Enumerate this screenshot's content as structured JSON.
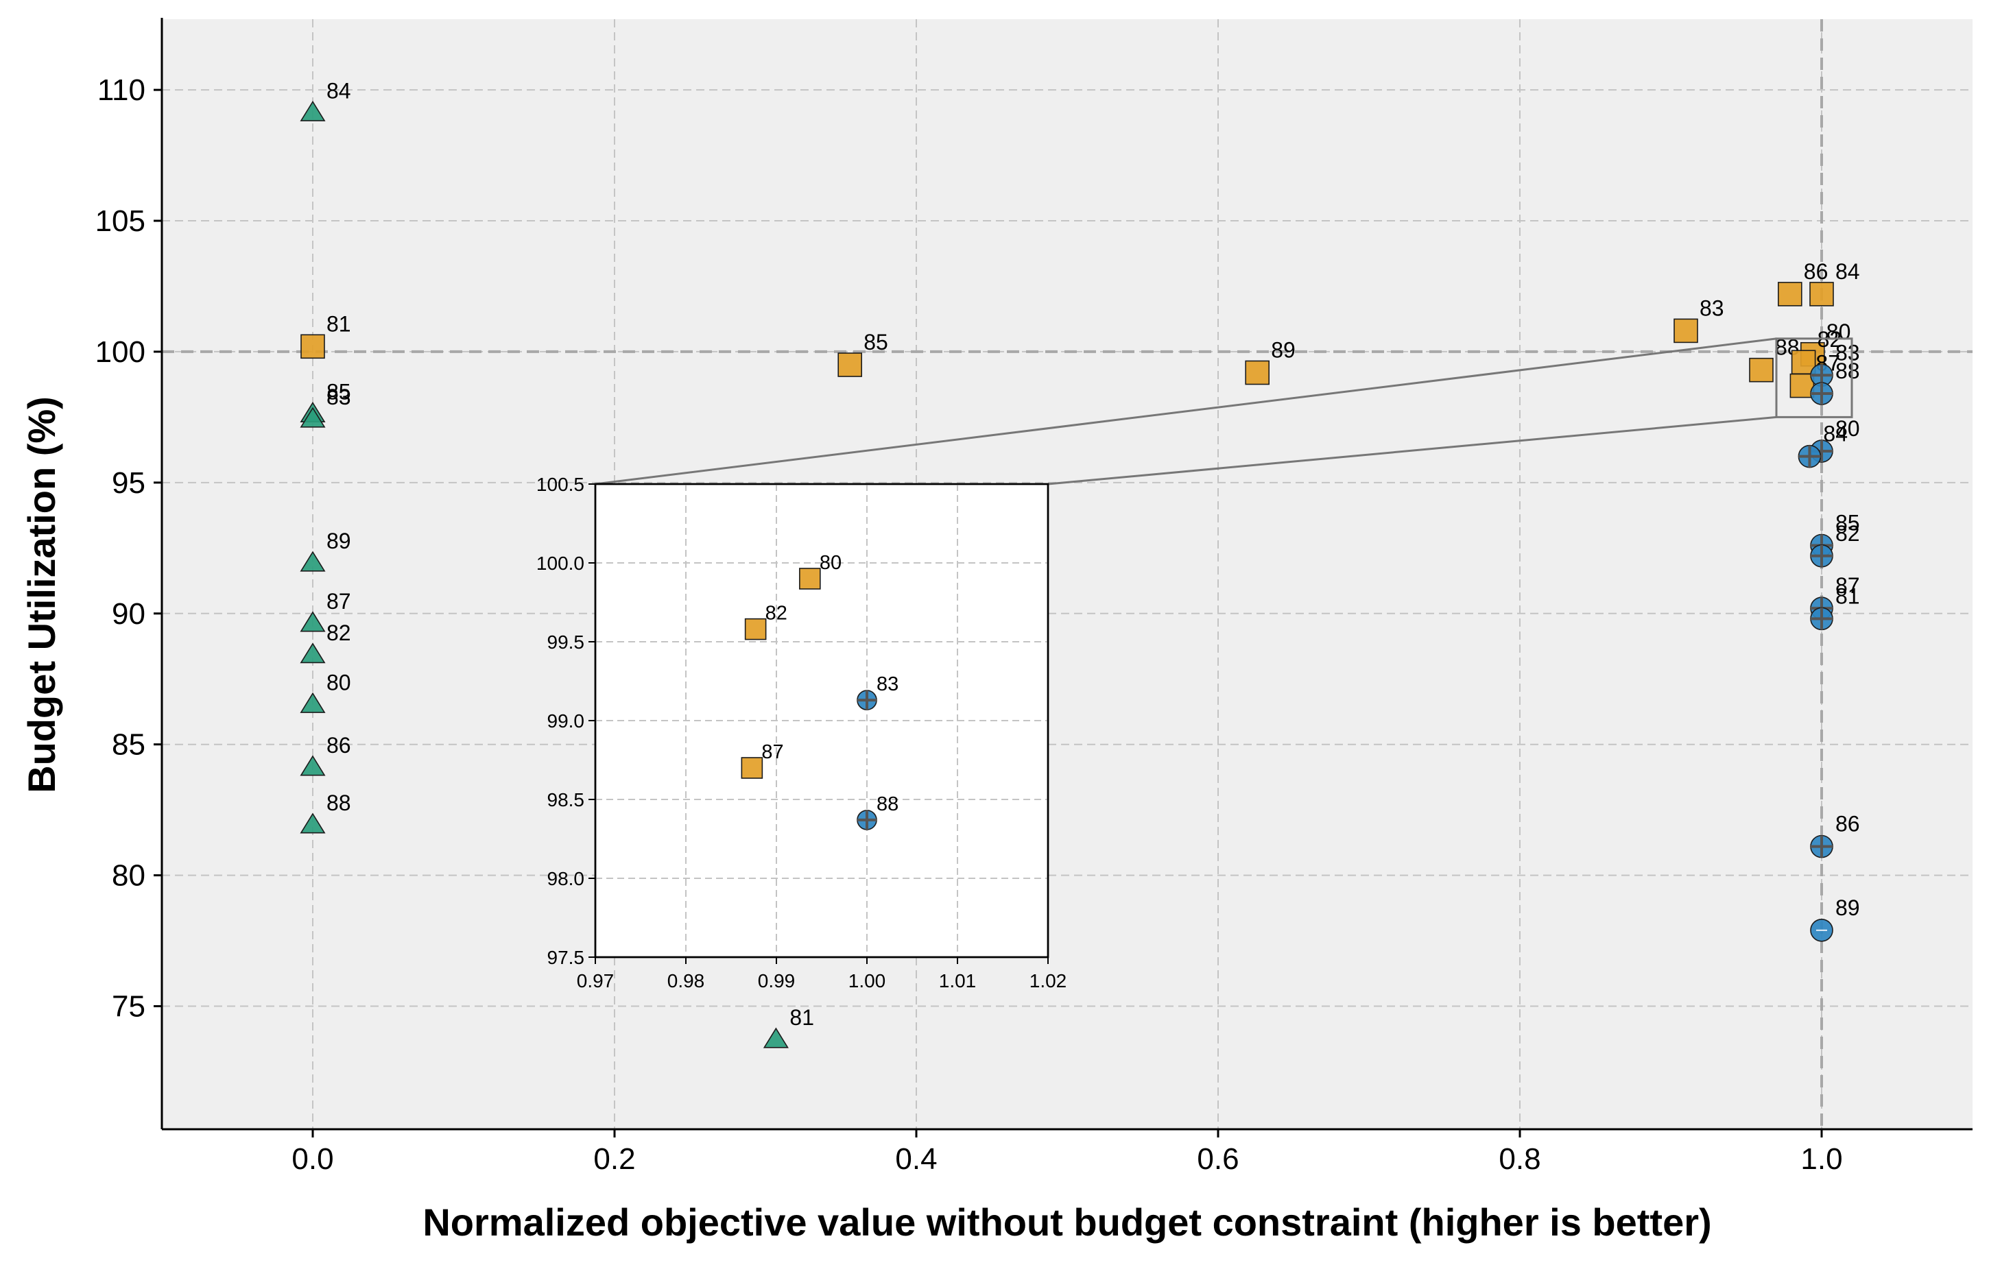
{
  "chart_data": {
    "type": "scatter",
    "title": "",
    "xlabel": "Normalized objective value without budget constraint (higher is better)",
    "ylabel": "Budget Utilization (%)",
    "xlim": [
      -0.1,
      1.1
    ],
    "ylim": [
      70.3,
      112.7
    ],
    "xticks": [
      0.0,
      0.2,
      0.4,
      0.6,
      0.8,
      1.0
    ],
    "xtick_labels": [
      "0.0",
      "0.2",
      "0.4",
      "0.6",
      "0.8",
      "1.0"
    ],
    "yticks": [
      75,
      80,
      85,
      90,
      95,
      100,
      105,
      110
    ],
    "ytick_labels": [
      "75",
      "80",
      "85",
      "90",
      "95",
      "100",
      "105",
      "110"
    ],
    "grid": true,
    "reference_lines": {
      "x": 1.0,
      "y": 100
    },
    "series": [
      {
        "marker": "triangle",
        "color": "#2a9d7c",
        "points": [
          {
            "x": 0.0,
            "y": 109.1,
            "label": "84"
          },
          {
            "x": 0.0,
            "y": 97.6,
            "label": "85"
          },
          {
            "x": 0.0,
            "y": 97.4,
            "label": "83"
          },
          {
            "x": 0.0,
            "y": 91.9,
            "label": "89"
          },
          {
            "x": 0.0,
            "y": 89.6,
            "label": "87"
          },
          {
            "x": 0.0,
            "y": 88.4,
            "label": "82"
          },
          {
            "x": 0.0,
            "y": 86.5,
            "label": "80"
          },
          {
            "x": 0.0,
            "y": 84.1,
            "label": "86"
          },
          {
            "x": 0.0,
            "y": 81.9,
            "label": "88"
          },
          {
            "x": 0.307,
            "y": 73.7,
            "label": "81"
          }
        ]
      },
      {
        "marker": "square",
        "color": "#e3a028",
        "points": [
          {
            "x": 0.0,
            "y": 100.2,
            "label": "81"
          },
          {
            "x": 0.356,
            "y": 99.5,
            "label": "85"
          },
          {
            "x": 0.626,
            "y": 99.2,
            "label": "89"
          },
          {
            "x": 0.91,
            "y": 100.8,
            "label": "83"
          },
          {
            "x": 0.979,
            "y": 102.2,
            "label": "86"
          },
          {
            "x": 1.0,
            "y": 102.2,
            "label": "84"
          },
          {
            "x": 0.96,
            "y": 99.3,
            "label": "88"
          },
          {
            "x": 0.994,
            "y": 99.9,
            "label": "80"
          },
          {
            "x": 0.988,
            "y": 99.6,
            "label": "82"
          },
          {
            "x": 0.987,
            "y": 98.7,
            "label": "87"
          }
        ]
      },
      {
        "marker": "circle-plus",
        "color": "#2e86c1",
        "points": [
          {
            "x": 1.0,
            "y": 99.1,
            "label": "83"
          },
          {
            "x": 1.0,
            "y": 98.4,
            "label": "88"
          },
          {
            "x": 1.0,
            "y": 96.2,
            "label": "80"
          },
          {
            "x": 0.992,
            "y": 96.0,
            "label": "84"
          },
          {
            "x": 1.0,
            "y": 92.6,
            "label": "85"
          },
          {
            "x": 1.0,
            "y": 92.2,
            "label": "82"
          },
          {
            "x": 1.0,
            "y": 90.2,
            "label": "87"
          },
          {
            "x": 1.0,
            "y": 89.8,
            "label": "81"
          },
          {
            "x": 1.0,
            "y": 81.1,
            "label": "86"
          },
          {
            "x": 1.0,
            "y": 77.9,
            "label": "89",
            "plain": true
          }
        ]
      }
    ],
    "inset": {
      "xlim": [
        0.97,
        1.02
      ],
      "ylim": [
        97.5,
        100.5
      ],
      "xticks": [
        0.97,
        0.98,
        0.99,
        1.0,
        1.01,
        1.02
      ],
      "xtick_labels": [
        "0.97",
        "0.98",
        "0.99",
        "1.00",
        "1.01",
        "1.02"
      ],
      "yticks": [
        97.5,
        98.0,
        98.5,
        99.0,
        99.5,
        100.0,
        100.5
      ],
      "ytick_labels": [
        "97.5",
        "98.0",
        "98.5",
        "99.0",
        "99.5",
        "100.0",
        "100.5"
      ],
      "grid": true,
      "points": [
        {
          "x": 0.9937,
          "y": 99.9,
          "label": "80",
          "marker": "square",
          "color": "#e3a028"
        },
        {
          "x": 0.9877,
          "y": 99.58,
          "label": "82",
          "marker": "square",
          "color": "#e3a028"
        },
        {
          "x": 0.9873,
          "y": 98.7,
          "label": "87",
          "marker": "square",
          "color": "#e3a028"
        },
        {
          "x": 1.0,
          "y": 99.13,
          "label": "83",
          "marker": "circle-plus",
          "color": "#2e86c1"
        },
        {
          "x": 1.0,
          "y": 98.37,
          "label": "88",
          "marker": "circle-plus",
          "color": "#2e86c1"
        }
      ]
    },
    "colors": {
      "plot_background": "#efefef",
      "grid": "#c4c4c4",
      "reference_line": "#a8a8a8"
    }
  }
}
